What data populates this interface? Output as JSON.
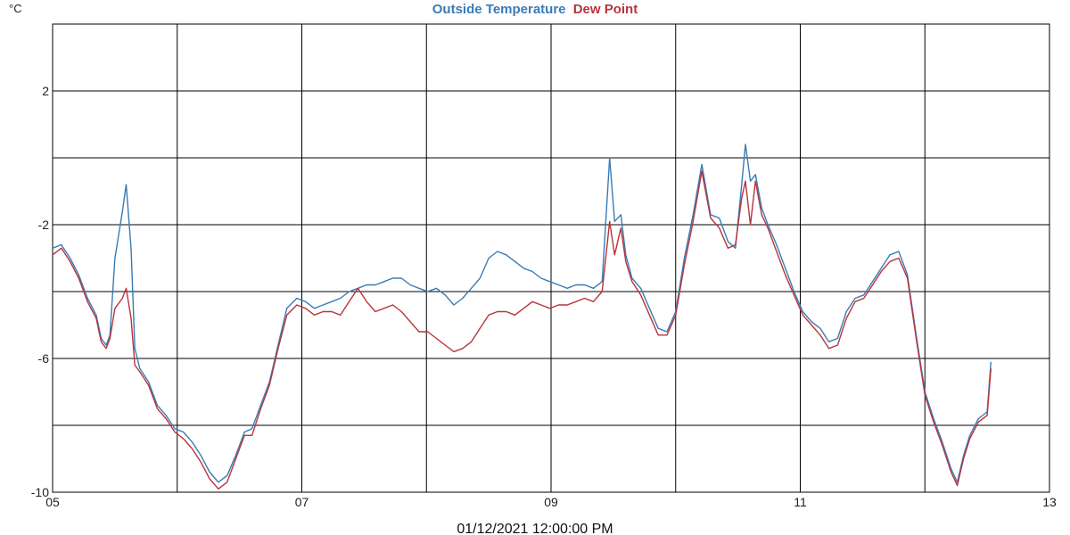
{
  "chart_data": {
    "type": "line",
    "title_parts": [
      {
        "text": "Outside Temperature",
        "color": "#3a7bb5"
      },
      {
        "text": "Dew Point",
        "color": "#b8343a"
      }
    ],
    "unit_label": "°C",
    "xlabel": "01/12/2021 12:00:00 PM",
    "xlim": [
      5,
      13
    ],
    "ylim": [
      -10,
      4
    ],
    "x_ticks": [
      5,
      6,
      7,
      8,
      9,
      10,
      11,
      12,
      13
    ],
    "x_tick_labels": [
      "05",
      "07",
      "09",
      "11",
      "13"
    ],
    "x_tick_label_values": [
      5,
      7,
      9,
      11,
      13
    ],
    "y_ticks": [
      -10,
      -8,
      -6,
      -4,
      -2,
      0,
      2,
      4
    ],
    "y_tick_labels": [
      "-10",
      "-6",
      "-2",
      "2"
    ],
    "y_tick_label_values": [
      -10,
      -6,
      -2,
      2
    ],
    "grid": true,
    "series": [
      {
        "name": "Outside Temperature",
        "color": "#3a7bb5",
        "points": [
          [
            5.0,
            -2.7
          ],
          [
            5.07,
            -2.6
          ],
          [
            5.14,
            -3.0
          ],
          [
            5.21,
            -3.5
          ],
          [
            5.28,
            -4.2
          ],
          [
            5.35,
            -4.7
          ],
          [
            5.39,
            -5.4
          ],
          [
            5.43,
            -5.6
          ],
          [
            5.46,
            -5.3
          ],
          [
            5.5,
            -3.0
          ],
          [
            5.56,
            -1.6
          ],
          [
            5.59,
            -0.8
          ],
          [
            5.63,
            -2.7
          ],
          [
            5.66,
            -5.7
          ],
          [
            5.7,
            -6.3
          ],
          [
            5.77,
            -6.7
          ],
          [
            5.84,
            -7.4
          ],
          [
            5.91,
            -7.7
          ],
          [
            5.98,
            -8.1
          ],
          [
            6.05,
            -8.2
          ],
          [
            6.12,
            -8.5
          ],
          [
            6.19,
            -8.9
          ],
          [
            6.26,
            -9.4
          ],
          [
            6.33,
            -9.7
          ],
          [
            6.4,
            -9.5
          ],
          [
            6.47,
            -8.9
          ],
          [
            6.54,
            -8.2
          ],
          [
            6.6,
            -8.1
          ],
          [
            6.67,
            -7.4
          ],
          [
            6.74,
            -6.7
          ],
          [
            6.81,
            -5.6
          ],
          [
            6.88,
            -4.5
          ],
          [
            6.96,
            -4.2
          ],
          [
            7.03,
            -4.3
          ],
          [
            7.1,
            -4.5
          ],
          [
            7.17,
            -4.4
          ],
          [
            7.24,
            -4.3
          ],
          [
            7.31,
            -4.2
          ],
          [
            7.38,
            -4.0
          ],
          [
            7.45,
            -3.9
          ],
          [
            7.52,
            -3.8
          ],
          [
            7.59,
            -3.8
          ],
          [
            7.66,
            -3.7
          ],
          [
            7.73,
            -3.6
          ],
          [
            7.8,
            -3.6
          ],
          [
            7.87,
            -3.8
          ],
          [
            7.94,
            -3.9
          ],
          [
            8.01,
            -4.0
          ],
          [
            8.08,
            -3.9
          ],
          [
            8.15,
            -4.1
          ],
          [
            8.22,
            -4.4
          ],
          [
            8.29,
            -4.2
          ],
          [
            8.36,
            -3.9
          ],
          [
            8.43,
            -3.6
          ],
          [
            8.5,
            -3.0
          ],
          [
            8.57,
            -2.8
          ],
          [
            8.64,
            -2.9
          ],
          [
            8.71,
            -3.1
          ],
          [
            8.78,
            -3.3
          ],
          [
            8.85,
            -3.4
          ],
          [
            8.92,
            -3.6
          ],
          [
            8.99,
            -3.7
          ],
          [
            9.06,
            -3.8
          ],
          [
            9.13,
            -3.9
          ],
          [
            9.2,
            -3.8
          ],
          [
            9.27,
            -3.8
          ],
          [
            9.34,
            -3.9
          ],
          [
            9.41,
            -3.7
          ],
          [
            9.47,
            0.0
          ],
          [
            9.51,
            -1.9
          ],
          [
            9.56,
            -1.7
          ],
          [
            9.6,
            -2.9
          ],
          [
            9.65,
            -3.6
          ],
          [
            9.72,
            -3.9
          ],
          [
            9.79,
            -4.5
          ],
          [
            9.86,
            -5.1
          ],
          [
            9.93,
            -5.2
          ],
          [
            10.0,
            -4.6
          ],
          [
            10.07,
            -3.0
          ],
          [
            10.14,
            -1.7
          ],
          [
            10.21,
            -0.2
          ],
          [
            10.28,
            -1.7
          ],
          [
            10.35,
            -1.8
          ],
          [
            10.42,
            -2.5
          ],
          [
            10.48,
            -2.7
          ],
          [
            10.53,
            -0.8
          ],
          [
            10.56,
            0.4
          ],
          [
            10.6,
            -0.7
          ],
          [
            10.64,
            -0.5
          ],
          [
            10.69,
            -1.5
          ],
          [
            10.74,
            -2.0
          ],
          [
            10.81,
            -2.6
          ],
          [
            10.88,
            -3.3
          ],
          [
            10.95,
            -4.0
          ],
          [
            11.02,
            -4.6
          ],
          [
            11.09,
            -4.9
          ],
          [
            11.16,
            -5.1
          ],
          [
            11.23,
            -5.5
          ],
          [
            11.3,
            -5.4
          ],
          [
            11.37,
            -4.6
          ],
          [
            11.44,
            -4.2
          ],
          [
            11.51,
            -4.1
          ],
          [
            11.58,
            -3.7
          ],
          [
            11.65,
            -3.3
          ],
          [
            11.72,
            -2.9
          ],
          [
            11.79,
            -2.8
          ],
          [
            11.86,
            -3.5
          ],
          [
            11.93,
            -5.3
          ],
          [
            12.0,
            -7.0
          ],
          [
            12.07,
            -7.8
          ],
          [
            12.14,
            -8.5
          ],
          [
            12.21,
            -9.3
          ],
          [
            12.26,
            -9.7
          ],
          [
            12.31,
            -8.9
          ],
          [
            12.36,
            -8.3
          ],
          [
            12.43,
            -7.8
          ],
          [
            12.5,
            -7.6
          ],
          [
            12.53,
            -6.1
          ]
        ]
      },
      {
        "name": "Dew Point",
        "color": "#b8343a",
        "points": [
          [
            5.0,
            -2.9
          ],
          [
            5.07,
            -2.7
          ],
          [
            5.14,
            -3.1
          ],
          [
            5.21,
            -3.6
          ],
          [
            5.28,
            -4.3
          ],
          [
            5.35,
            -4.8
          ],
          [
            5.39,
            -5.5
          ],
          [
            5.43,
            -5.7
          ],
          [
            5.46,
            -5.4
          ],
          [
            5.5,
            -4.5
          ],
          [
            5.56,
            -4.2
          ],
          [
            5.59,
            -3.9
          ],
          [
            5.63,
            -4.8
          ],
          [
            5.66,
            -6.2
          ],
          [
            5.7,
            -6.4
          ],
          [
            5.77,
            -6.8
          ],
          [
            5.84,
            -7.5
          ],
          [
            5.91,
            -7.8
          ],
          [
            5.98,
            -8.2
          ],
          [
            6.05,
            -8.4
          ],
          [
            6.12,
            -8.7
          ],
          [
            6.19,
            -9.1
          ],
          [
            6.26,
            -9.6
          ],
          [
            6.33,
            -9.9
          ],
          [
            6.4,
            -9.7
          ],
          [
            6.47,
            -9.0
          ],
          [
            6.54,
            -8.3
          ],
          [
            6.6,
            -8.3
          ],
          [
            6.67,
            -7.5
          ],
          [
            6.74,
            -6.8
          ],
          [
            6.81,
            -5.7
          ],
          [
            6.88,
            -4.7
          ],
          [
            6.96,
            -4.4
          ],
          [
            7.03,
            -4.5
          ],
          [
            7.1,
            -4.7
          ],
          [
            7.17,
            -4.6
          ],
          [
            7.24,
            -4.6
          ],
          [
            7.31,
            -4.7
          ],
          [
            7.38,
            -4.3
          ],
          [
            7.45,
            -3.9
          ],
          [
            7.52,
            -4.3
          ],
          [
            7.59,
            -4.6
          ],
          [
            7.66,
            -4.5
          ],
          [
            7.73,
            -4.4
          ],
          [
            7.8,
            -4.6
          ],
          [
            7.87,
            -4.9
          ],
          [
            7.94,
            -5.2
          ],
          [
            8.01,
            -5.2
          ],
          [
            8.08,
            -5.4
          ],
          [
            8.15,
            -5.6
          ],
          [
            8.22,
            -5.8
          ],
          [
            8.29,
            -5.7
          ],
          [
            8.36,
            -5.5
          ],
          [
            8.43,
            -5.1
          ],
          [
            8.5,
            -4.7
          ],
          [
            8.57,
            -4.6
          ],
          [
            8.64,
            -4.6
          ],
          [
            8.71,
            -4.7
          ],
          [
            8.78,
            -4.5
          ],
          [
            8.85,
            -4.3
          ],
          [
            8.92,
            -4.4
          ],
          [
            8.99,
            -4.5
          ],
          [
            9.06,
            -4.4
          ],
          [
            9.13,
            -4.4
          ],
          [
            9.2,
            -4.3
          ],
          [
            9.27,
            -4.2
          ],
          [
            9.34,
            -4.3
          ],
          [
            9.41,
            -4.0
          ],
          [
            9.47,
            -1.9
          ],
          [
            9.51,
            -2.9
          ],
          [
            9.56,
            -2.1
          ],
          [
            9.6,
            -3.1
          ],
          [
            9.65,
            -3.7
          ],
          [
            9.72,
            -4.1
          ],
          [
            9.79,
            -4.7
          ],
          [
            9.86,
            -5.3
          ],
          [
            9.93,
            -5.3
          ],
          [
            10.0,
            -4.7
          ],
          [
            10.07,
            -3.2
          ],
          [
            10.14,
            -1.9
          ],
          [
            10.21,
            -0.4
          ],
          [
            10.28,
            -1.8
          ],
          [
            10.35,
            -2.1
          ],
          [
            10.42,
            -2.7
          ],
          [
            10.48,
            -2.6
          ],
          [
            10.53,
            -1.2
          ],
          [
            10.56,
            -0.7
          ],
          [
            10.6,
            -2.0
          ],
          [
            10.64,
            -0.7
          ],
          [
            10.69,
            -1.7
          ],
          [
            10.74,
            -2.1
          ],
          [
            10.81,
            -2.8
          ],
          [
            10.88,
            -3.5
          ],
          [
            10.95,
            -4.1
          ],
          [
            11.02,
            -4.7
          ],
          [
            11.09,
            -5.0
          ],
          [
            11.16,
            -5.3
          ],
          [
            11.23,
            -5.7
          ],
          [
            11.3,
            -5.6
          ],
          [
            11.37,
            -4.8
          ],
          [
            11.44,
            -4.3
          ],
          [
            11.51,
            -4.2
          ],
          [
            11.58,
            -3.8
          ],
          [
            11.65,
            -3.4
          ],
          [
            11.72,
            -3.1
          ],
          [
            11.79,
            -3.0
          ],
          [
            11.86,
            -3.6
          ],
          [
            11.93,
            -5.4
          ],
          [
            12.0,
            -7.1
          ],
          [
            12.07,
            -7.9
          ],
          [
            12.14,
            -8.6
          ],
          [
            12.21,
            -9.4
          ],
          [
            12.26,
            -9.8
          ],
          [
            12.31,
            -9.0
          ],
          [
            12.36,
            -8.4
          ],
          [
            12.43,
            -7.9
          ],
          [
            12.5,
            -7.7
          ],
          [
            12.53,
            -6.3
          ]
        ]
      }
    ]
  }
}
